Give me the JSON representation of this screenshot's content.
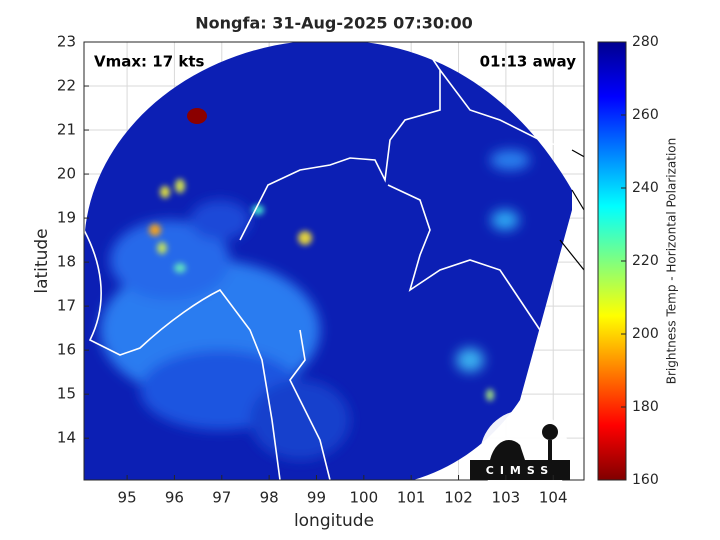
{
  "chart_data": {
    "type": "map",
    "title": "Nongfa: 31-Aug-2025 07:30:00",
    "x_label": "longitude",
    "y_label": "latitude",
    "annotations": [
      "Vmax: 17 kts",
      "01:13 away"
    ],
    "colorbar_label": "Brightness Temp - Horizontal Polarization",
    "clim": [
      160,
      280
    ],
    "cticks": [
      160,
      180,
      200,
      220,
      240,
      260,
      280
    ],
    "xlim": [
      94.09,
      104.65
    ],
    "xticks": [
      95,
      96,
      97,
      98,
      99,
      100,
      101,
      102,
      103,
      104
    ],
    "ylim": [
      13.05,
      23
    ],
    "yticks": [
      14,
      15,
      16,
      17,
      18,
      19,
      20,
      21,
      22,
      23
    ],
    "grid": true,
    "logo": "CIMSS"
  }
}
